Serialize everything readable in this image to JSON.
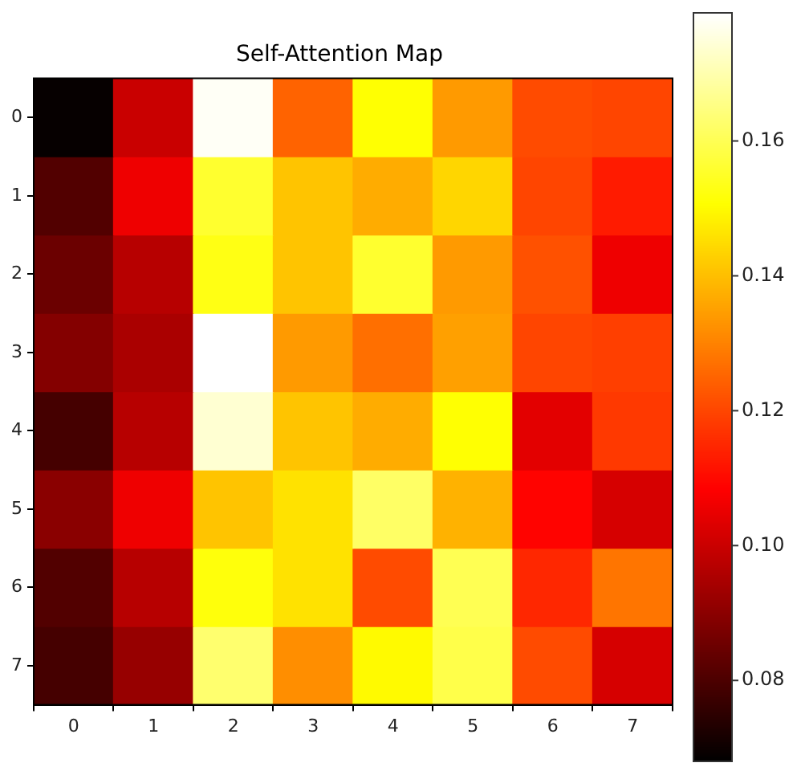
{
  "chart_data": {
    "type": "heatmap",
    "title": "Self-Attention Map",
    "categories": [
      "0",
      "1",
      "2",
      "3",
      "4",
      "5",
      "6",
      "7"
    ],
    "y_categories": [
      "0",
      "1",
      "2",
      "3",
      "4",
      "5",
      "6",
      "7"
    ],
    "cells": [
      [
        0.069,
        0.1,
        0.178,
        0.125,
        0.151,
        0.134,
        0.121,
        0.12
      ],
      [
        0.081,
        0.106,
        0.156,
        0.141,
        0.137,
        0.144,
        0.12,
        0.113
      ],
      [
        0.085,
        0.097,
        0.153,
        0.141,
        0.156,
        0.134,
        0.122,
        0.106
      ],
      [
        0.089,
        0.095,
        0.179,
        0.134,
        0.127,
        0.135,
        0.12,
        0.119
      ],
      [
        0.079,
        0.097,
        0.174,
        0.141,
        0.137,
        0.151,
        0.104,
        0.118
      ],
      [
        0.09,
        0.106,
        0.141,
        0.146,
        0.162,
        0.138,
        0.109,
        0.102
      ],
      [
        0.081,
        0.097,
        0.152,
        0.146,
        0.121,
        0.16,
        0.115,
        0.128
      ],
      [
        0.079,
        0.092,
        0.163,
        0.132,
        0.15,
        0.159,
        0.121,
        0.102
      ]
    ],
    "clim": [
      0.068,
      0.179
    ],
    "cticks": [
      0.08,
      {
        "value": 0.1,
        "label": "0.10"
      },
      0.12,
      0.14,
      0.16
    ]
  }
}
